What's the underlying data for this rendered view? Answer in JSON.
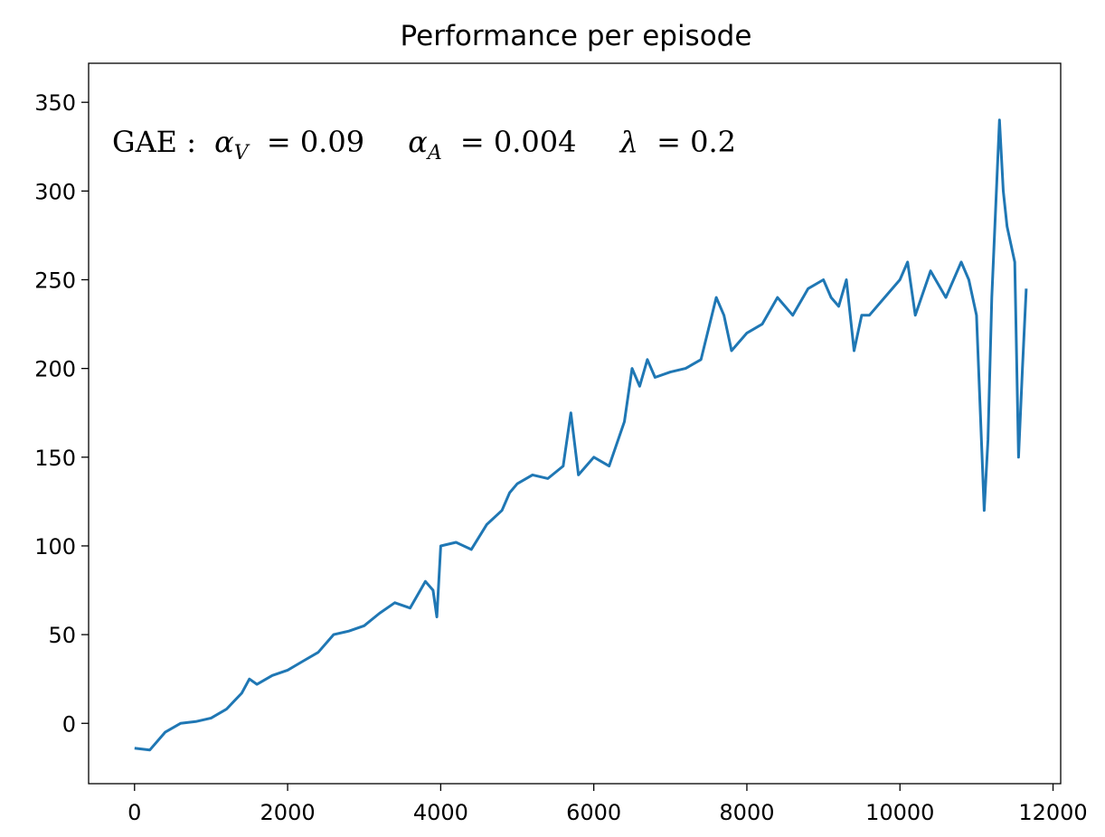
{
  "chart_data": {
    "type": "line",
    "title": "Performance per episode",
    "xlabel": "",
    "ylabel": "",
    "xlim": [
      -600,
      12100
    ],
    "ylim": [
      -34,
      372
    ],
    "x_ticks": [
      0,
      2000,
      4000,
      6000,
      8000,
      10000,
      12000
    ],
    "y_ticks": [
      0,
      50,
      100,
      150,
      200,
      250,
      300,
      350
    ],
    "grid": false,
    "legend": "none",
    "annotation": {
      "prefix": "GAE :",
      "alpha_v_symbol": "α",
      "alpha_v_sub": "V",
      "alpha_v_value": "= 0.09",
      "alpha_a_symbol": "α",
      "alpha_a_sub": "A",
      "alpha_a_value": "= 0.004",
      "lambda_symbol": "λ",
      "lambda_value": "= 0.2"
    },
    "series": [
      {
        "color": "#1f77b4",
        "x": [
          0,
          200,
          400,
          600,
          800,
          1000,
          1200,
          1400,
          1500,
          1600,
          1800,
          2000,
          2200,
          2400,
          2600,
          2800,
          3000,
          3200,
          3400,
          3600,
          3800,
          3900,
          3950,
          4000,
          4200,
          4400,
          4600,
          4800,
          4900,
          5000,
          5200,
          5400,
          5600,
          5700,
          5800,
          6000,
          6200,
          6400,
          6500,
          6600,
          6700,
          6800,
          7000,
          7200,
          7400,
          7600,
          7700,
          7800,
          8000,
          8200,
          8400,
          8600,
          8800,
          9000,
          9100,
          9200,
          9300,
          9400,
          9500,
          9600,
          9800,
          10000,
          10100,
          10200,
          10400,
          10600,
          10800,
          10900,
          11000,
          11100,
          11150,
          11200,
          11300,
          11350,
          11400,
          11500,
          11550,
          11600,
          11650
        ],
        "y": [
          -14,
          -15,
          -5,
          0,
          1,
          3,
          8,
          17,
          25,
          22,
          27,
          30,
          35,
          40,
          50,
          52,
          55,
          62,
          68,
          65,
          80,
          75,
          60,
          100,
          102,
          98,
          112,
          120,
          130,
          135,
          140,
          138,
          145,
          175,
          140,
          150,
          145,
          170,
          200,
          190,
          205,
          195,
          198,
          200,
          205,
          240,
          230,
          210,
          220,
          225,
          240,
          230,
          245,
          250,
          240,
          235,
          250,
          210,
          230,
          230,
          240,
          250,
          260,
          230,
          255,
          240,
          260,
          250,
          230,
          120,
          160,
          240,
          340,
          300,
          280,
          260,
          150,
          200,
          245
        ]
      }
    ]
  }
}
